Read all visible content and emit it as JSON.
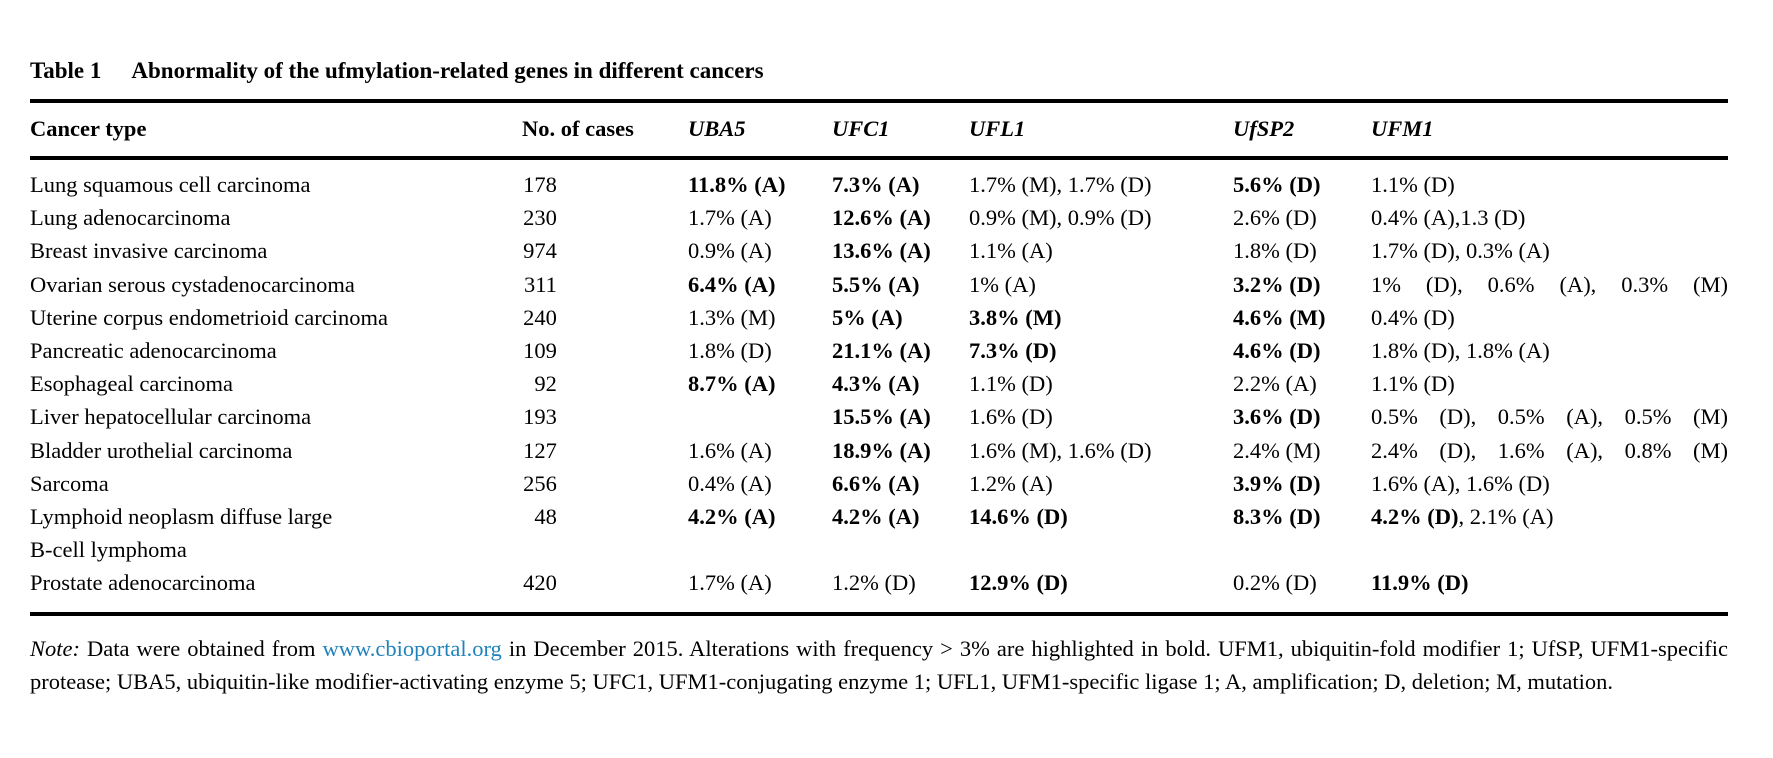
{
  "title": {
    "label": "Table 1",
    "caption": "Abnormality of the ufmylation-related genes in different cancers"
  },
  "colors": {
    "link": "#1f82bd",
    "text": "#000000"
  },
  "table": {
    "columns": [
      {
        "label": "Cancer type",
        "italic": false
      },
      {
        "label": "No. of cases",
        "italic": false
      },
      {
        "label": "UBA5",
        "italic": true
      },
      {
        "label": "UFC1",
        "italic": true
      },
      {
        "label": "UFL1",
        "italic": true
      },
      {
        "label": "UfSP2",
        "italic": true
      },
      {
        "label": "UFM1",
        "italic": true
      }
    ],
    "gene_keys": [
      "uba5",
      "ufc1",
      "ufl1",
      "ufsp2",
      "ufm1"
    ],
    "rows": [
      {
        "name_lines": [
          "Lung squamous cell carcinoma"
        ],
        "cases": "178",
        "uba5": [
          {
            "t": "11.8% (A)",
            "b": true
          }
        ],
        "ufc1": [
          {
            "t": "7.3% (A)",
            "b": true
          }
        ],
        "ufl1": [
          {
            "t": "1.7% (M), 1.7% (D)"
          }
        ],
        "ufsp2": [
          {
            "t": "5.6% (D)",
            "b": true
          }
        ],
        "ufm1": [
          {
            "t": "1.1% (D)"
          }
        ]
      },
      {
        "name_lines": [
          "Lung adenocarcinoma"
        ],
        "cases": "230",
        "uba5": [
          {
            "t": "1.7% (A)"
          }
        ],
        "ufc1": [
          {
            "t": "12.6% (A)",
            "b": true
          }
        ],
        "ufl1": [
          {
            "t": "0.9% (M), 0.9% (D)"
          }
        ],
        "ufsp2": [
          {
            "t": "2.6% (D)"
          }
        ],
        "ufm1": [
          {
            "t": "0.4% (A),1.3 (D)"
          }
        ]
      },
      {
        "name_lines": [
          "Breast invasive carcinoma"
        ],
        "cases": "974",
        "uba5": [
          {
            "t": "0.9% (A)"
          }
        ],
        "ufc1": [
          {
            "t": "13.6% (A)",
            "b": true
          }
        ],
        "ufl1": [
          {
            "t": "1.1% (A)"
          }
        ],
        "ufsp2": [
          {
            "t": "1.8% (D)"
          }
        ],
        "ufm1": [
          {
            "t": "1.7% (D), 0.3% (A)"
          }
        ]
      },
      {
        "name_lines": [
          "Ovarian serous cystadenocarcinoma"
        ],
        "cases": "311",
        "uba5": [
          {
            "t": "6.4% (A)",
            "b": true
          }
        ],
        "ufc1": [
          {
            "t": "5.5% (A)",
            "b": true
          }
        ],
        "ufl1": [
          {
            "t": "1% (A)"
          }
        ],
        "ufsp2": [
          {
            "t": "3.2% (D)",
            "b": true
          }
        ],
        "ufm1": [
          {
            "t": "1% (D), 0.6% (A), 0.3% (M)"
          }
        ],
        "justify": [
          "ufm1"
        ]
      },
      {
        "name_lines": [
          "Uterine corpus endometrioid carcinoma"
        ],
        "cases": "240",
        "uba5": [
          {
            "t": "1.3% (M)"
          }
        ],
        "ufc1": [
          {
            "t": "5% (A)",
            "b": true
          }
        ],
        "ufl1": [
          {
            "t": "3.8% (M)",
            "b": true
          }
        ],
        "ufsp2": [
          {
            "t": "4.6% (M)",
            "b": true
          }
        ],
        "ufm1": [
          {
            "t": "0.4% (D)"
          }
        ]
      },
      {
        "name_lines": [
          "Pancreatic adenocarcinoma"
        ],
        "cases": "109",
        "uba5": [
          {
            "t": "1.8% (D)"
          }
        ],
        "ufc1": [
          {
            "t": "21.1% (A)",
            "b": true
          }
        ],
        "ufl1": [
          {
            "t": "7.3% (D)",
            "b": true
          }
        ],
        "ufsp2": [
          {
            "t": "4.6% (D)",
            "b": true
          }
        ],
        "ufm1": [
          {
            "t": "1.8% (D), 1.8% (A)"
          }
        ]
      },
      {
        "name_lines": [
          "Esophageal carcinoma"
        ],
        "cases": "92",
        "uba5": [
          {
            "t": "8.7% (A)",
            "b": true
          }
        ],
        "ufc1": [
          {
            "t": "4.3% (A)",
            "b": true
          }
        ],
        "ufl1": [
          {
            "t": "1.1% (D)"
          }
        ],
        "ufsp2": [
          {
            "t": "2.2% (A)"
          }
        ],
        "ufm1": [
          {
            "t": "1.1% (D)"
          }
        ]
      },
      {
        "name_lines": [
          "Liver hepatocellular carcinoma"
        ],
        "cases": "193",
        "uba5": [],
        "ufc1": [
          {
            "t": "15.5% (A)",
            "b": true
          }
        ],
        "ufl1": [
          {
            "t": "1.6% (D)"
          }
        ],
        "ufsp2": [
          {
            "t": "3.6% (D)",
            "b": true
          }
        ],
        "ufm1": [
          {
            "t": "0.5% (D), 0.5% (A), 0.5% (M)"
          }
        ],
        "justify": [
          "ufm1"
        ]
      },
      {
        "name_lines": [
          "Bladder urothelial carcinoma"
        ],
        "cases": "127",
        "uba5": [
          {
            "t": "1.6% (A)"
          }
        ],
        "ufc1": [
          {
            "t": "18.9% (A)",
            "b": true
          }
        ],
        "ufl1": [
          {
            "t": "1.6% (M), 1.6% (D)"
          }
        ],
        "ufsp2": [
          {
            "t": "2.4% (M)"
          }
        ],
        "ufm1": [
          {
            "t": "2.4% (D), 1.6% (A), 0.8% (M)"
          }
        ],
        "justify": [
          "ufm1"
        ]
      },
      {
        "name_lines": [
          "Sarcoma"
        ],
        "cases": "256",
        "uba5": [
          {
            "t": "0.4% (A)"
          }
        ],
        "ufc1": [
          {
            "t": "6.6% (A)",
            "b": true
          }
        ],
        "ufl1": [
          {
            "t": "1.2% (A)"
          }
        ],
        "ufsp2": [
          {
            "t": "3.9% (D)",
            "b": true
          }
        ],
        "ufm1": [
          {
            "t": "1.6% (A), 1.6% (D)"
          }
        ]
      },
      {
        "name_lines": [
          "Lymphoid neoplasm diffuse large",
          "B-cell lymphoma"
        ],
        "cases": "48",
        "uba5": [
          {
            "t": "4.2% (A)",
            "b": true
          }
        ],
        "ufc1": [
          {
            "t": "4.2% (A)",
            "b": true
          }
        ],
        "ufl1": [
          {
            "t": "14.6% (D)",
            "b": true
          }
        ],
        "ufsp2": [
          {
            "t": "8.3% (D)",
            "b": true
          }
        ],
        "ufm1": [
          {
            "t": "4.2% (D)",
            "b": true
          },
          {
            "t": ", 2.1% (A)"
          }
        ]
      },
      {
        "name_lines": [
          "Prostate adenocarcinoma"
        ],
        "cases": "420",
        "uba5": [
          {
            "t": "1.7% (A)"
          }
        ],
        "ufc1": [
          {
            "t": "1.2% (D)"
          }
        ],
        "ufl1": [
          {
            "t": "12.9% (D)",
            "b": true
          }
        ],
        "ufsp2": [
          {
            "t": "0.2% (D)"
          }
        ],
        "ufm1": [
          {
            "t": "11.9% (D)",
            "b": true
          }
        ]
      }
    ]
  },
  "note": {
    "label": "Note:",
    "before_link": " Data were obtained from ",
    "link_text": "www.cbioportal.org",
    "after_link": " in December 2015. Alterations with frequency > 3% are highlighted in bold. UFM1, ubiquitin-fold modifier 1; UfSP, UFM1-specific protease; UBA5, ubiquitin-like modifier-activating enzyme 5; UFC1, UFM1-conjugating enzyme 1; UFL1, UFM1-specific ligase 1; A, amplification; D, deletion; M, mutation."
  }
}
